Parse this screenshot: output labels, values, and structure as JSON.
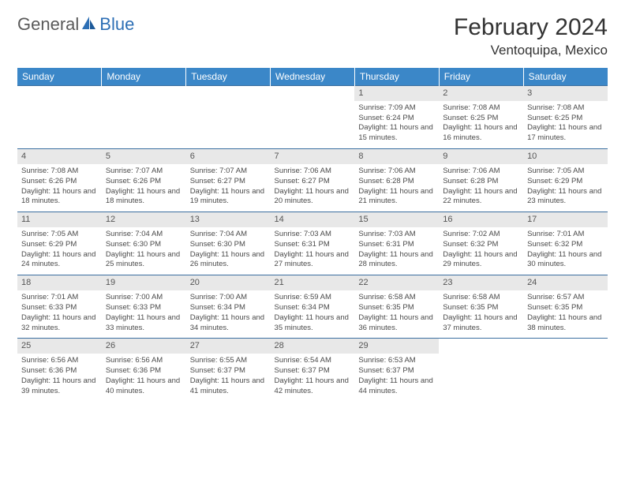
{
  "logo": {
    "general": "General",
    "blue": "Blue"
  },
  "title": "February 2024",
  "location": "Ventoquipa, Mexico",
  "colors": {
    "header_bg": "#3b87c8",
    "header_text": "#ffffff",
    "date_bg": "#e8e8e8",
    "border": "#3b6fa0",
    "logo_gray": "#5a5a5a",
    "logo_blue": "#2d6fb5"
  },
  "day_names": [
    "Sunday",
    "Monday",
    "Tuesday",
    "Wednesday",
    "Thursday",
    "Friday",
    "Saturday"
  ],
  "weeks": [
    [
      null,
      null,
      null,
      null,
      {
        "d": "1",
        "sr": "7:09 AM",
        "ss": "6:24 PM",
        "dl": "11 hours and 15 minutes."
      },
      {
        "d": "2",
        "sr": "7:08 AM",
        "ss": "6:25 PM",
        "dl": "11 hours and 16 minutes."
      },
      {
        "d": "3",
        "sr": "7:08 AM",
        "ss": "6:25 PM",
        "dl": "11 hours and 17 minutes."
      }
    ],
    [
      {
        "d": "4",
        "sr": "7:08 AM",
        "ss": "6:26 PM",
        "dl": "11 hours and 18 minutes."
      },
      {
        "d": "5",
        "sr": "7:07 AM",
        "ss": "6:26 PM",
        "dl": "11 hours and 18 minutes."
      },
      {
        "d": "6",
        "sr": "7:07 AM",
        "ss": "6:27 PM",
        "dl": "11 hours and 19 minutes."
      },
      {
        "d": "7",
        "sr": "7:06 AM",
        "ss": "6:27 PM",
        "dl": "11 hours and 20 minutes."
      },
      {
        "d": "8",
        "sr": "7:06 AM",
        "ss": "6:28 PM",
        "dl": "11 hours and 21 minutes."
      },
      {
        "d": "9",
        "sr": "7:06 AM",
        "ss": "6:28 PM",
        "dl": "11 hours and 22 minutes."
      },
      {
        "d": "10",
        "sr": "7:05 AM",
        "ss": "6:29 PM",
        "dl": "11 hours and 23 minutes."
      }
    ],
    [
      {
        "d": "11",
        "sr": "7:05 AM",
        "ss": "6:29 PM",
        "dl": "11 hours and 24 minutes."
      },
      {
        "d": "12",
        "sr": "7:04 AM",
        "ss": "6:30 PM",
        "dl": "11 hours and 25 minutes."
      },
      {
        "d": "13",
        "sr": "7:04 AM",
        "ss": "6:30 PM",
        "dl": "11 hours and 26 minutes."
      },
      {
        "d": "14",
        "sr": "7:03 AM",
        "ss": "6:31 PM",
        "dl": "11 hours and 27 minutes."
      },
      {
        "d": "15",
        "sr": "7:03 AM",
        "ss": "6:31 PM",
        "dl": "11 hours and 28 minutes."
      },
      {
        "d": "16",
        "sr": "7:02 AM",
        "ss": "6:32 PM",
        "dl": "11 hours and 29 minutes."
      },
      {
        "d": "17",
        "sr": "7:01 AM",
        "ss": "6:32 PM",
        "dl": "11 hours and 30 minutes."
      }
    ],
    [
      {
        "d": "18",
        "sr": "7:01 AM",
        "ss": "6:33 PM",
        "dl": "11 hours and 32 minutes."
      },
      {
        "d": "19",
        "sr": "7:00 AM",
        "ss": "6:33 PM",
        "dl": "11 hours and 33 minutes."
      },
      {
        "d": "20",
        "sr": "7:00 AM",
        "ss": "6:34 PM",
        "dl": "11 hours and 34 minutes."
      },
      {
        "d": "21",
        "sr": "6:59 AM",
        "ss": "6:34 PM",
        "dl": "11 hours and 35 minutes."
      },
      {
        "d": "22",
        "sr": "6:58 AM",
        "ss": "6:35 PM",
        "dl": "11 hours and 36 minutes."
      },
      {
        "d": "23",
        "sr": "6:58 AM",
        "ss": "6:35 PM",
        "dl": "11 hours and 37 minutes."
      },
      {
        "d": "24",
        "sr": "6:57 AM",
        "ss": "6:35 PM",
        "dl": "11 hours and 38 minutes."
      }
    ],
    [
      {
        "d": "25",
        "sr": "6:56 AM",
        "ss": "6:36 PM",
        "dl": "11 hours and 39 minutes."
      },
      {
        "d": "26",
        "sr": "6:56 AM",
        "ss": "6:36 PM",
        "dl": "11 hours and 40 minutes."
      },
      {
        "d": "27",
        "sr": "6:55 AM",
        "ss": "6:37 PM",
        "dl": "11 hours and 41 minutes."
      },
      {
        "d": "28",
        "sr": "6:54 AM",
        "ss": "6:37 PM",
        "dl": "11 hours and 42 minutes."
      },
      {
        "d": "29",
        "sr": "6:53 AM",
        "ss": "6:37 PM",
        "dl": "11 hours and 44 minutes."
      },
      null,
      null
    ]
  ],
  "labels": {
    "sunrise": "Sunrise: ",
    "sunset": "Sunset: ",
    "daylight": "Daylight: "
  }
}
